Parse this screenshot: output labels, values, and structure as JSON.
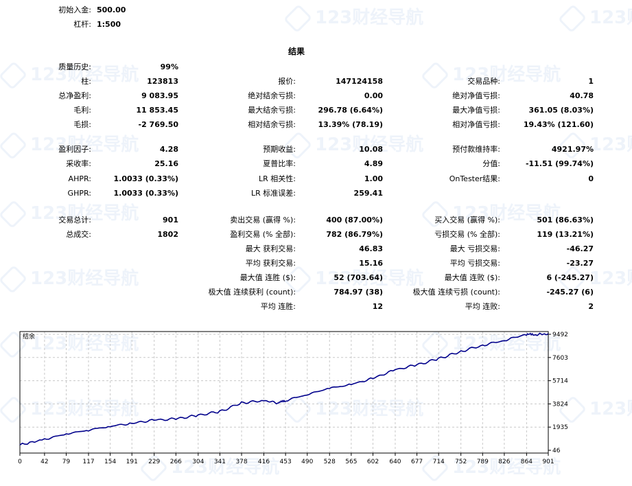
{
  "header": {
    "deposit_label": "初始入金:",
    "deposit_value": "500.00",
    "leverage_label": "杠杆:",
    "leverage_value": "1:500"
  },
  "results_title": "结果",
  "col1": [
    {
      "label": "质量历史:",
      "value": "99%"
    },
    {
      "label": "柱:",
      "value": "123813"
    },
    {
      "label": "总净盈利:",
      "value": "9 083.95"
    },
    {
      "label": "毛利:",
      "value": "11 853.45"
    },
    {
      "label": "毛损:",
      "value": "-2 769.50"
    },
    {
      "label": "盈利因子:",
      "value": "4.28"
    },
    {
      "label": "采收率:",
      "value": "25.16"
    },
    {
      "label": "AHPR:",
      "value": "1.0033 (0.33%)"
    },
    {
      "label": "GHPR:",
      "value": "1.0033 (0.33%)"
    },
    {
      "label": "交易总计:",
      "value": "901"
    },
    {
      "label": "总成交:",
      "value": "1802"
    }
  ],
  "col2": [
    {
      "label": "报价:",
      "value": "147124158"
    },
    {
      "label": "绝对结余亏损:",
      "value": "0.00"
    },
    {
      "label": "最大结余亏损:",
      "value": "296.78 (6.64%)"
    },
    {
      "label": "相对结余亏损:",
      "value": "13.39% (78.19)"
    },
    {
      "label": "预期收益:",
      "value": "10.08"
    },
    {
      "label": "夏普比率:",
      "value": "4.89"
    },
    {
      "label": "LR 相关性:",
      "value": "1.00"
    },
    {
      "label": "LR 标准误差:",
      "value": "259.41"
    },
    {
      "label": "卖出交易 (赢得 %):",
      "value": "400 (87.00%)"
    },
    {
      "label": "盈利交易 (% 全部):",
      "value": "782 (86.79%)"
    },
    {
      "label": "最大 获利交易:",
      "value": "46.83"
    },
    {
      "label": "平均 获利交易:",
      "value": "15.16"
    },
    {
      "label": "最大值 连胜 ($):",
      "value": "52 (703.64)"
    },
    {
      "label": "极大值 连续获利 (count):",
      "value": "784.97 (38)"
    },
    {
      "label": "平均 连胜:",
      "value": "12"
    }
  ],
  "col3": [
    {
      "label": "交易品种:",
      "value": "1"
    },
    {
      "label": "绝对净值亏损:",
      "value": "40.78"
    },
    {
      "label": "最大净值亏损:",
      "value": "361.05 (8.03%)"
    },
    {
      "label": "相对净值亏损:",
      "value": "19.43% (121.60)"
    },
    {
      "label": "预付款维持率:",
      "value": "4921.97%"
    },
    {
      "label": "分值:",
      "value": "-11.51 (99.74%)"
    },
    {
      "label": "OnTester结果:",
      "value": "0"
    },
    {
      "label": "买入交易 (赢得 %):",
      "value": "501 (86.63%)"
    },
    {
      "label": "亏损交易 (% 全部):",
      "value": "119 (13.21%)"
    },
    {
      "label": "最大 亏损交易:",
      "value": "-46.27"
    },
    {
      "label": "平均 亏损交易:",
      "value": "-23.27"
    },
    {
      "label": "最大值 连败 ($):",
      "value": "6 (-245.27)"
    },
    {
      "label": "极大值 连续亏损 (count):",
      "value": "-245.27 (6)"
    },
    {
      "label": "平均 连败:",
      "value": "2"
    }
  ],
  "watermark": "123财经导航",
  "chart_data": {
    "type": "line",
    "legend": "结余",
    "x_ticks": [
      "0",
      "42",
      "79",
      "117",
      "154",
      "191",
      "229",
      "266",
      "304",
      "341",
      "378",
      "416",
      "453",
      "490",
      "528",
      "565",
      "602",
      "640",
      "677",
      "714",
      "752",
      "789",
      "826",
      "864",
      "901"
    ],
    "y_ticks": [
      "9492",
      "7603",
      "5714",
      "3824",
      "1935",
      "46"
    ],
    "ylim": [
      46,
      9492
    ],
    "xlim": [
      0,
      901
    ],
    "line_color": "#00008b",
    "grid": true,
    "series": [
      {
        "x": [
          0,
          42,
          79,
          117,
          154,
          191,
          229,
          266,
          304,
          341,
          378,
          416,
          440,
          453,
          490,
          528,
          565,
          602,
          640,
          677,
          714,
          752,
          789,
          826,
          864,
          880,
          901
        ],
        "values": [
          480,
          940,
          1380,
          1700,
          2000,
          2250,
          2500,
          2600,
          2900,
          3200,
          3900,
          4100,
          3900,
          4100,
          4600,
          5100,
          5400,
          5900,
          6600,
          7000,
          7500,
          8100,
          8600,
          9000,
          9500,
          9450,
          9550
        ]
      }
    ]
  },
  "colors": {
    "line": "#00008b",
    "grid": "#c8c8c8",
    "frame": "#000000"
  }
}
